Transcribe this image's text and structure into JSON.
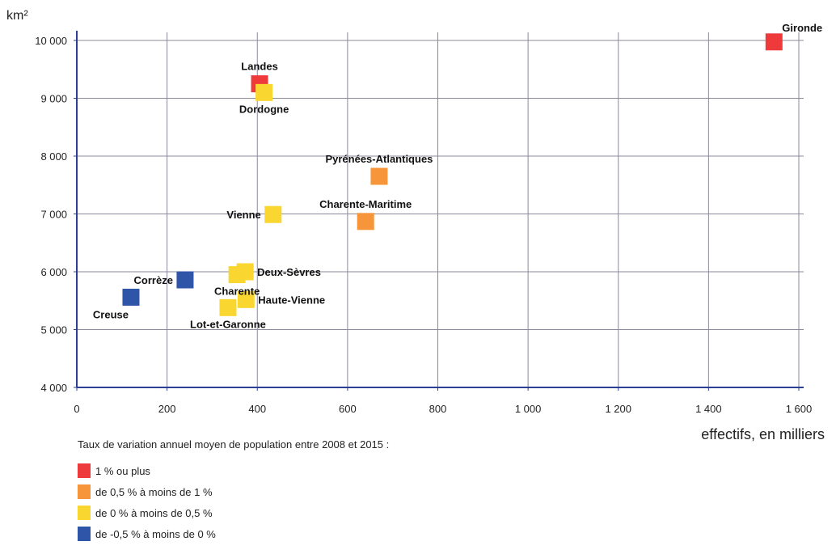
{
  "chart_data": {
    "type": "scatter",
    "y_unit": "km²",
    "xlabel": "effectifs, en milliers",
    "xlim": [
      0,
      1600
    ],
    "ylim": [
      4000,
      10000
    ],
    "x_ticks": [
      0,
      200,
      400,
      600,
      800,
      1000,
      1200,
      1400,
      1600
    ],
    "x_tick_labels": [
      "0",
      "200",
      "400",
      "600",
      "800",
      "1 000",
      "1 200",
      "1 400",
      "1 600"
    ],
    "y_ticks": [
      4000,
      5000,
      6000,
      7000,
      8000,
      9000,
      10000
    ],
    "y_tick_labels": [
      "4 000",
      "5 000",
      "6 000",
      "7 000",
      "8 000",
      "9 000",
      "10 000"
    ],
    "grid": true,
    "legend": {
      "title": "Taux de variation annuel moyen de population entre 2008 et 2015 :",
      "placement": "bottom-left",
      "items": [
        {
          "key": "red",
          "label": "1 % ou plus",
          "color": "#ee3a3a"
        },
        {
          "key": "orange",
          "label": "de 0,5 % à moins de 1 %",
          "color": "#f7953a"
        },
        {
          "key": "yellow",
          "label": "de 0 % à moins de 0,5 %",
          "color": "#f9d630"
        },
        {
          "key": "blue",
          "label": "de -0,5 % à moins de 0 %",
          "color": "#2f55a8"
        }
      ]
    },
    "points": [
      {
        "name": "Gironde",
        "x": 1545,
        "y": 9975,
        "category": "red",
        "label_pos": "above-right"
      },
      {
        "name": "Landes",
        "x": 405,
        "y": 9250,
        "category": "red",
        "label_pos": "above"
      },
      {
        "name": "Dordogne",
        "x": 415,
        "y": 9100,
        "category": "yellow",
        "label_pos": "below"
      },
      {
        "name": "Pyrénées-Atlantiques",
        "x": 670,
        "y": 7650,
        "category": "orange",
        "label_pos": "above"
      },
      {
        "name": "Charente-Maritime",
        "x": 640,
        "y": 6870,
        "category": "orange",
        "label_pos": "above"
      },
      {
        "name": "Vienne",
        "x": 435,
        "y": 6990,
        "category": "yellow",
        "label_pos": "left"
      },
      {
        "name": "Deux-Sèvres",
        "x": 373,
        "y": 6000,
        "category": "yellow",
        "label_pos": "right"
      },
      {
        "name": "Charente",
        "x": 355,
        "y": 5950,
        "category": "yellow",
        "label_pos": "below"
      },
      {
        "name": "Corrèze",
        "x": 240,
        "y": 5860,
        "category": "blue",
        "label_pos": "left"
      },
      {
        "name": "Haute-Vienne",
        "x": 375,
        "y": 5520,
        "category": "yellow",
        "label_pos": "right"
      },
      {
        "name": "Lot-et-Garonne",
        "x": 335,
        "y": 5380,
        "category": "yellow",
        "label_pos": "below"
      },
      {
        "name": "Creuse",
        "x": 120,
        "y": 5560,
        "category": "blue",
        "label_pos": "below-left"
      }
    ]
  }
}
